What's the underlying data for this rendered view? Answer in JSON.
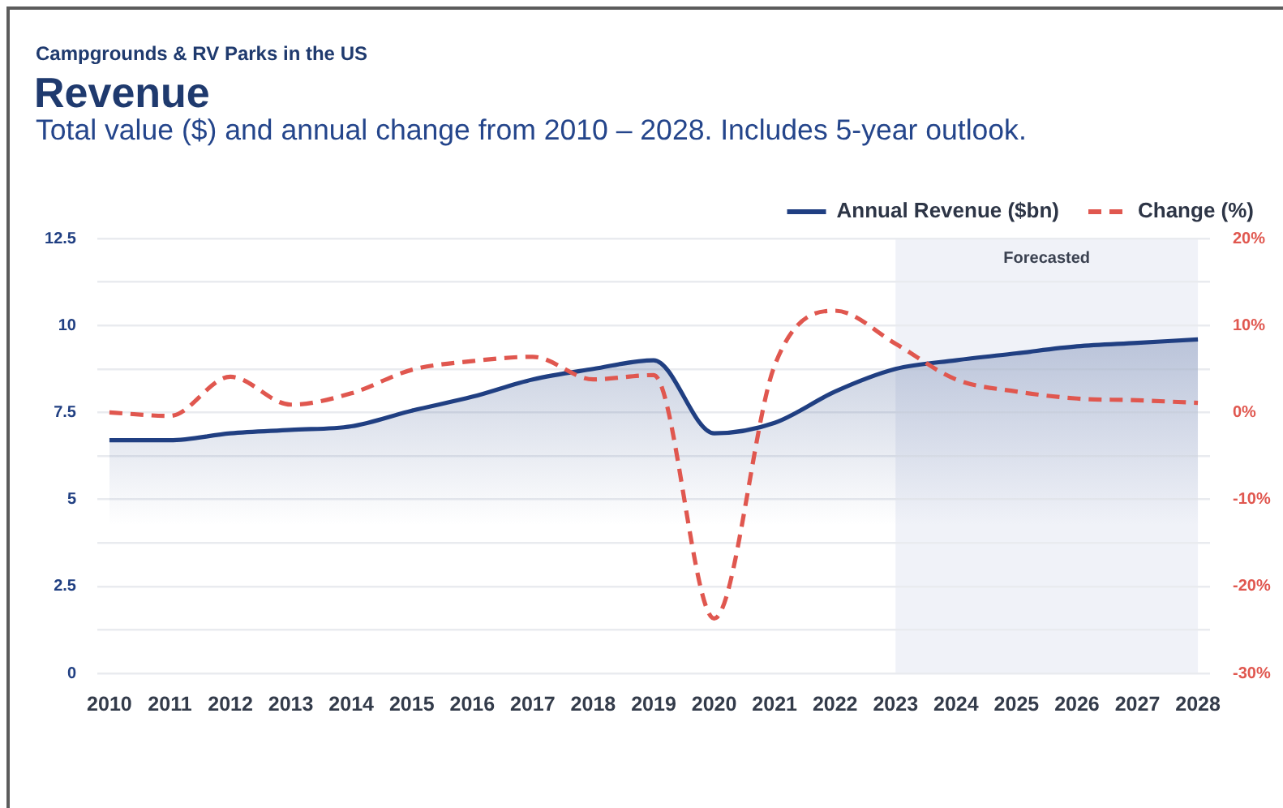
{
  "chart_data": {
    "type": "line",
    "title": "Revenue",
    "subtitle": "Total value ($) and annual change from 2010 – 2028. Includes 5-year outlook.",
    "annotations": [
      "Campgrounds & RV Parks in the US"
    ],
    "x": [
      2010,
      2011,
      2012,
      2013,
      2014,
      2015,
      2016,
      2017,
      2018,
      2019,
      2020,
      2021,
      2022,
      2023,
      2024,
      2025,
      2026,
      2027,
      2028
    ],
    "series": [
      {
        "name": "Annual Revenue ($bn)",
        "type": "area",
        "color": "#203f82",
        "values": [
          6.7,
          6.7,
          6.9,
          7.0,
          7.1,
          7.55,
          7.95,
          8.45,
          8.75,
          9.0,
          6.9,
          7.2,
          8.1,
          8.75,
          9.0,
          9.2,
          9.4,
          9.5,
          9.6
        ]
      },
      {
        "name": "Change (%)",
        "type": "line",
        "axis": "y2",
        "line_style": "dashed",
        "color": "#e0574f",
        "values": [
          0,
          -0.4,
          4.1,
          0.9,
          2.2,
          4.9,
          5.9,
          6.4,
          3.8,
          4.3,
          -23.7,
          5.4,
          11.7,
          7.9,
          3.8,
          2.4,
          1.6,
          1.4,
          1.1
        ]
      }
    ],
    "xlim": [
      2009.8,
      2028.2
    ],
    "xticks": [
      2010,
      2011,
      2012,
      2013,
      2014,
      2015,
      2016,
      2017,
      2018,
      2019,
      2020,
      2021,
      2022,
      2023,
      2024,
      2025,
      2026,
      2027,
      2028
    ],
    "ylim": [
      0,
      12.5
    ],
    "yticks": [
      0,
      {
        "value": 1.25,
        "label": null
      },
      2.5,
      {
        "value": 3.75,
        "label": null
      },
      5,
      {
        "value": 6.25,
        "label": null
      },
      7.5,
      {
        "value": 8.75,
        "label": null
      },
      10,
      {
        "value": 11.25,
        "label": null
      },
      12.5
    ],
    "y2lim": [
      -30,
      20
    ],
    "y2ticks": [
      {
        "value": -30,
        "label": "-30%"
      },
      {
        "value": -20,
        "label": "-20%"
      },
      {
        "value": -10,
        "label": "-10%"
      },
      {
        "value": 0,
        "label": "0%"
      },
      {
        "value": 10,
        "label": "10%"
      },
      {
        "value": 20,
        "label": "20%"
      }
    ],
    "bands": [
      {
        "axis": "x",
        "from": 2023,
        "to": 2028,
        "label": "Forecasted",
        "color": "#f0f2f8"
      }
    ],
    "grid": "y",
    "legend": "top right",
    "marker": "none"
  }
}
